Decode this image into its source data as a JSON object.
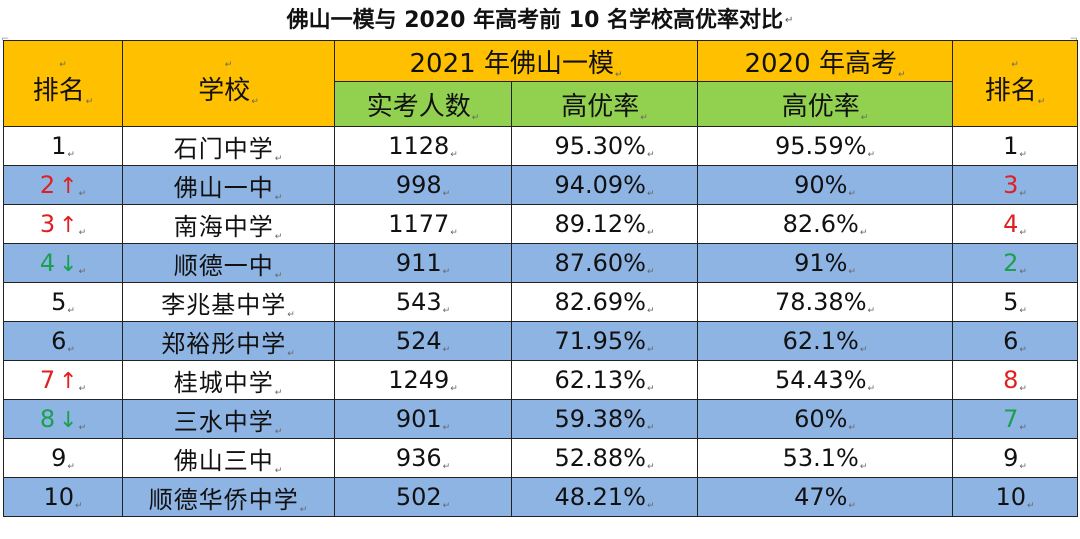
{
  "title": "佛山一模与 2020 年高考前 10 名学校高优率对比",
  "headers": {
    "rank_left": "排名",
    "school": "学校",
    "group_2021": "2021 年佛山一模",
    "group_2020": "2020 年高考",
    "sub_exam_count": "实考人数",
    "sub_rate_2021": "高优率",
    "sub_rate_2020": "高优率",
    "rank_right": "排名"
  },
  "colors": {
    "header_orange": "#ffc000",
    "header_green": "#92d050",
    "row_blue": "#8eb4e3",
    "up_red": "#e02020",
    "down_green": "#1aa050"
  },
  "rows": [
    {
      "rank": "1",
      "trend": "",
      "school": "石门中学",
      "count": "1128",
      "rate2021": "95.30%",
      "rate2020": "95.59%",
      "rank2020": "1"
    },
    {
      "rank": "2",
      "trend": "up",
      "school": "佛山一中",
      "count": "998",
      "rate2021": "94.09%",
      "rate2020": "90%",
      "rank2020": "3"
    },
    {
      "rank": "3",
      "trend": "up",
      "school": "南海中学",
      "count": "1177",
      "rate2021": "89.12%",
      "rate2020": "82.6%",
      "rank2020": "4"
    },
    {
      "rank": "4",
      "trend": "down",
      "school": "顺德一中",
      "count": "911",
      "rate2021": "87.60%",
      "rate2020": "91%",
      "rank2020": "2"
    },
    {
      "rank": "5",
      "trend": "",
      "school": "李兆基中学",
      "count": "543",
      "rate2021": "82.69%",
      "rate2020": "78.38%",
      "rank2020": "5"
    },
    {
      "rank": "6",
      "trend": "",
      "school": "郑裕彤中学",
      "count": "524",
      "rate2021": "71.95%",
      "rate2020": "62.1%",
      "rank2020": "6"
    },
    {
      "rank": "7",
      "trend": "up",
      "school": "桂城中学",
      "count": "1249",
      "rate2021": "62.13%",
      "rate2020": "54.43%",
      "rank2020": "8"
    },
    {
      "rank": "8",
      "trend": "down",
      "school": "三水中学",
      "count": "901",
      "rate2021": "59.38%",
      "rate2020": "60%",
      "rank2020": "7"
    },
    {
      "rank": "9",
      "trend": "",
      "school": "佛山三中",
      "count": "936",
      "rate2021": "52.88%",
      "rate2020": "53.1%",
      "rank2020": "9"
    },
    {
      "rank": "10",
      "trend": "",
      "school": "顺德华侨中学",
      "count": "502",
      "rate2021": "48.21%",
      "rate2020": "47%",
      "rank2020": "10"
    }
  ]
}
